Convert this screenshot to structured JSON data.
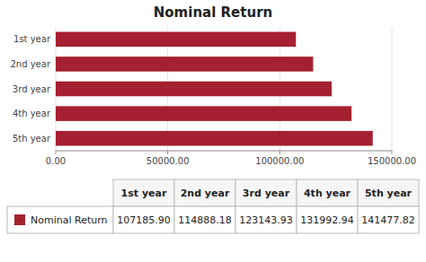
{
  "chart_data": {
    "type": "bar",
    "orientation": "horizontal",
    "title": "Nominal Return",
    "categories": [
      "1st year",
      "2nd year",
      "3rd year",
      "4th year",
      "5th year"
    ],
    "series": [
      {
        "name": "Nominal Return",
        "color": "#A52030",
        "values": [
          107185.9,
          114888.18,
          123143.93,
          131992.94,
          141477.82
        ],
        "value_labels": [
          "107185.90",
          "114888.18",
          "123143.93",
          "131992.94",
          "141477.82"
        ]
      }
    ],
    "xlim": [
      0,
      150000
    ],
    "xticks": [
      {
        "value": 0,
        "label": "0.00"
      },
      {
        "value": 50000,
        "label": "50000.00"
      },
      {
        "value": 100000,
        "label": "100000.00"
      },
      {
        "value": 150000,
        "label": "150000.00"
      }
    ],
    "grid": true
  }
}
